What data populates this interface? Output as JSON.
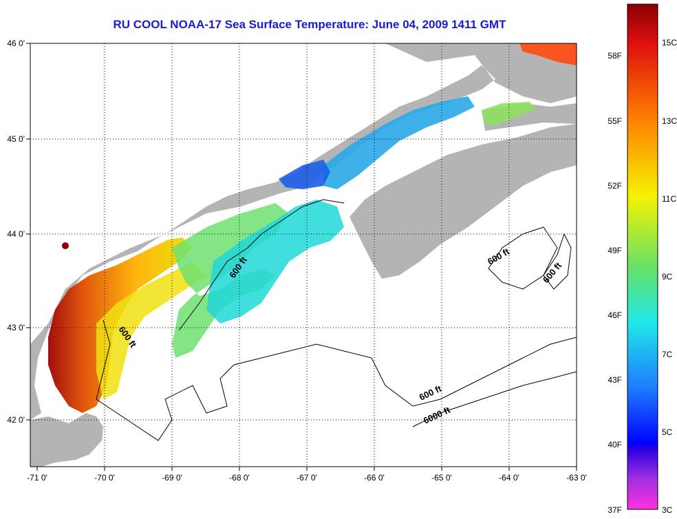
{
  "title": "RU COOL  NOAA-17  Sea Surface Temperature:  June 04, 2009 1411 GMT",
  "longitude_labels": [
    "-71 0'",
    "-70 0'",
    "-69 0'",
    "-68 0'",
    "-67 0'",
    "-66 0'",
    "-65 0'",
    "-64 0'",
    "-63 0'"
  ],
  "latitude_labels": [
    "46 0'",
    "45 0'",
    "44 0'",
    "43 0'",
    "42 0'"
  ],
  "depth_labels": [
    "600 ft",
    "600 ft",
    "600 ft",
    "600 ft",
    "600 ft",
    "6000 ft"
  ],
  "colorbar": {
    "fahrenheit": [
      "58F",
      "55F",
      "52F",
      "49F",
      "46F",
      "43F",
      "40F",
      "37F"
    ],
    "celsius": [
      "15C",
      "13C",
      "11C",
      "9C",
      "7C",
      "5C",
      "3C"
    ]
  },
  "colors": {
    "land": "#b4b4b4",
    "title": "#1a1ad0",
    "gridline": "#000000"
  }
}
